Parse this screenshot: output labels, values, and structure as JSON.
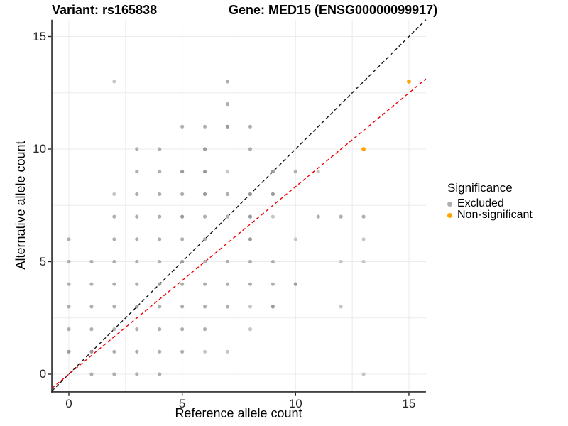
{
  "titles": {
    "variant": "Variant: rs165838",
    "gene": "Gene: MED15 (ENSG00000099917)"
  },
  "colors": {
    "background": "#ffffff",
    "grid": "#ebebeb",
    "axis": "#262626",
    "tick_text": "#262626",
    "identity_line": "#141414",
    "fit_line": "#f10000",
    "point_gray": "#afafaf",
    "point_gray_dark": "#9b9b9b",
    "point_gray_light": "#c6c6c6",
    "point_orange": "#ffa500"
  },
  "chart_data": {
    "type": "scatter",
    "xlabel": "Reference allele count",
    "ylabel": "Alternative allele count",
    "xticks": [
      0,
      5,
      10,
      15
    ],
    "yticks": [
      0,
      5,
      10,
      15
    ],
    "xlim": [
      -0.75,
      15.75
    ],
    "ylim": [
      -0.75,
      15.75
    ],
    "grid": {
      "show": true,
      "interval": 2.5
    },
    "legend": {
      "title": "Significance",
      "position": "right",
      "entries": [
        {
          "label": "Excluded",
          "color": "#afafaf"
        },
        {
          "label": "Non-significant",
          "color": "#ffa500"
        }
      ]
    },
    "lines": [
      {
        "name": "identity-line",
        "style": "dashed",
        "color": "#141414",
        "slope": 1,
        "intercept": 0
      },
      {
        "name": "fit-line",
        "style": "dashed",
        "color": "#f10000",
        "slope": 0.833,
        "intercept": 0
      }
    ],
    "series": [
      {
        "name": "Excluded",
        "color": "#afafaf",
        "point_radius": 2.6,
        "points": [
          [
            1,
            0
          ],
          [
            2,
            0
          ],
          [
            3,
            0
          ],
          [
            4,
            0
          ],
          [
            13,
            0,
            "l"
          ],
          [
            0,
            1,
            "d"
          ],
          [
            1,
            1,
            "d"
          ],
          [
            2,
            1
          ],
          [
            3,
            1
          ],
          [
            4,
            1
          ],
          [
            5,
            1
          ],
          [
            6,
            1,
            "l"
          ],
          [
            7,
            1,
            "l"
          ],
          [
            0,
            2
          ],
          [
            1,
            2
          ],
          [
            2,
            2
          ],
          [
            3,
            2
          ],
          [
            4,
            2
          ],
          [
            5,
            2
          ],
          [
            6,
            2
          ],
          [
            8,
            2,
            "l"
          ],
          [
            0,
            3
          ],
          [
            1,
            3
          ],
          [
            2,
            3
          ],
          [
            3,
            3,
            "d"
          ],
          [
            4,
            3
          ],
          [
            5,
            3
          ],
          [
            6,
            3
          ],
          [
            7,
            3
          ],
          [
            8,
            3,
            "l"
          ],
          [
            9,
            3,
            "d"
          ],
          [
            12,
            3,
            "l"
          ],
          [
            0,
            4
          ],
          [
            1,
            4
          ],
          [
            2,
            4
          ],
          [
            3,
            4
          ],
          [
            4,
            4,
            "d"
          ],
          [
            5,
            4
          ],
          [
            6,
            4
          ],
          [
            7,
            4
          ],
          [
            8,
            4
          ],
          [
            9,
            4
          ],
          [
            10,
            4,
            "d"
          ],
          [
            0,
            5
          ],
          [
            1,
            5
          ],
          [
            2,
            5
          ],
          [
            3,
            5
          ],
          [
            4,
            5
          ],
          [
            5,
            5,
            "d"
          ],
          [
            6,
            5
          ],
          [
            7,
            5
          ],
          [
            8,
            5
          ],
          [
            9,
            5
          ],
          [
            12,
            5,
            "l"
          ],
          [
            13,
            5,
            "l"
          ],
          [
            0,
            6
          ],
          [
            2,
            6
          ],
          [
            3,
            6
          ],
          [
            4,
            6
          ],
          [
            5,
            6
          ],
          [
            6,
            6
          ],
          [
            8,
            6,
            "d"
          ],
          [
            10,
            6,
            "l"
          ],
          [
            13,
            6,
            "l"
          ],
          [
            2,
            7
          ],
          [
            3,
            7
          ],
          [
            4,
            7
          ],
          [
            5,
            7,
            "d"
          ],
          [
            6,
            7
          ],
          [
            7,
            7
          ],
          [
            8,
            7,
            "d"
          ],
          [
            9,
            7,
            "l"
          ],
          [
            11,
            7
          ],
          [
            12,
            7
          ],
          [
            13,
            7
          ],
          [
            2,
            8,
            "l"
          ],
          [
            3,
            8
          ],
          [
            4,
            8
          ],
          [
            5,
            8
          ],
          [
            6,
            8,
            "d"
          ],
          [
            7,
            8
          ],
          [
            8,
            8,
            "d"
          ],
          [
            9,
            8,
            "d"
          ],
          [
            3,
            9
          ],
          [
            4,
            9
          ],
          [
            5,
            9,
            "d"
          ],
          [
            6,
            9,
            "d"
          ],
          [
            7,
            9,
            "l"
          ],
          [
            9,
            9,
            "d"
          ],
          [
            10,
            9
          ],
          [
            11,
            9,
            "l"
          ],
          [
            3,
            10
          ],
          [
            4,
            10
          ],
          [
            6,
            10,
            "d"
          ],
          [
            8,
            10
          ],
          [
            5,
            11
          ],
          [
            6,
            11
          ],
          [
            7,
            11,
            "d"
          ],
          [
            8,
            11
          ],
          [
            7,
            12
          ],
          [
            2,
            13,
            "l"
          ],
          [
            7,
            13
          ]
        ]
      },
      {
        "name": "Non-significant",
        "color": "#ffa500",
        "point_radius": 2.9,
        "points": [
          [
            13,
            10
          ],
          [
            15,
            13
          ]
        ]
      }
    ]
  }
}
